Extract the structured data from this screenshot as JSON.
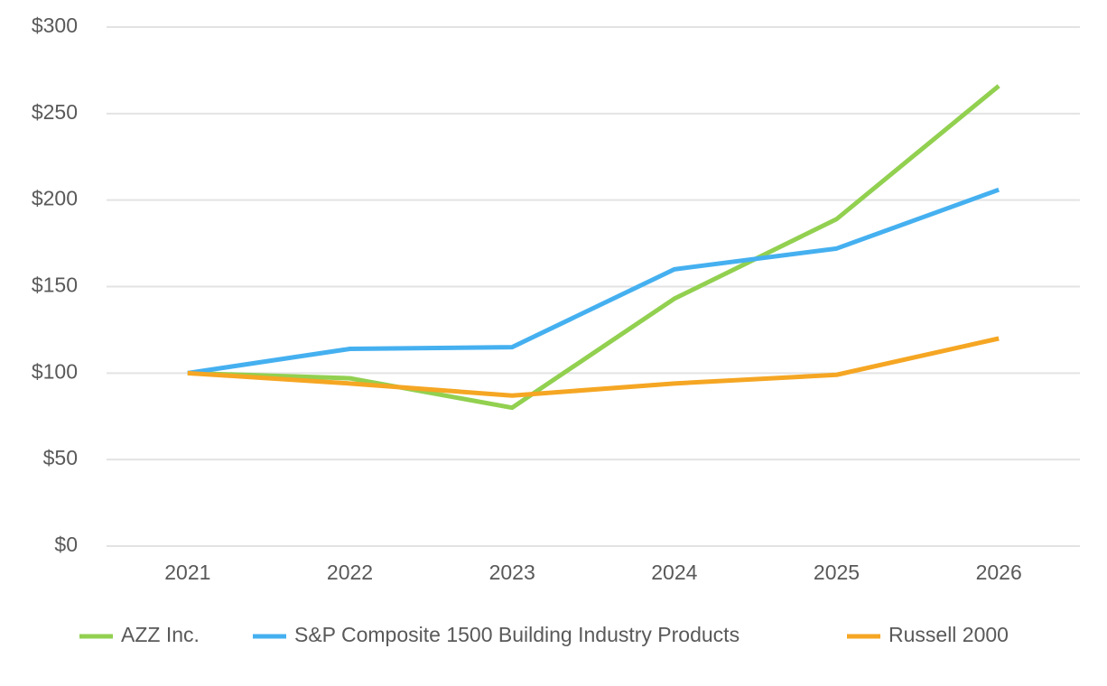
{
  "chart_data": {
    "type": "line",
    "categories": [
      "2021",
      "2022",
      "2023",
      "2024",
      "2025",
      "2026"
    ],
    "series": [
      {
        "name": "AZZ Inc.",
        "color": "#92d050",
        "values": [
          100,
          97,
          80,
          143,
          189,
          266
        ]
      },
      {
        "name": "S&P Composite 1500 Building Industry Products",
        "color": "#45b0f0",
        "values": [
          100,
          114,
          115,
          160,
          172,
          206
        ]
      },
      {
        "name": "Russell 2000",
        "color": "#f5a623",
        "values": [
          100,
          94,
          87,
          94,
          99,
          120
        ]
      }
    ],
    "ylim": [
      0,
      300
    ],
    "yticks": [
      {
        "value": 0,
        "label": "$0"
      },
      {
        "value": 50,
        "label": "$50"
      },
      {
        "value": 100,
        "label": "$100"
      },
      {
        "value": 150,
        "label": "$150"
      },
      {
        "value": 200,
        "label": "$200"
      },
      {
        "value": 250,
        "label": "$250"
      },
      {
        "value": 300,
        "label": "$300"
      }
    ],
    "grid": true,
    "legend": "bottom"
  }
}
